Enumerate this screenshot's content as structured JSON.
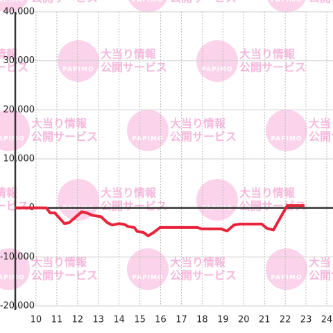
{
  "chart_data": {
    "type": "line",
    "watermark": {
      "logo": "PAPIMO",
      "lines": [
        "大当り情報",
        "公開サービス"
      ]
    },
    "xlim": [
      9,
      24.3
    ],
    "xticks": [
      10,
      11,
      12,
      13,
      14,
      15,
      16,
      17,
      18,
      19,
      20,
      21,
      22,
      23,
      24
    ],
    "ylim": [
      -20000,
      40000
    ],
    "yticks": [
      {
        "value": -20000,
        "label": "-20,000"
      },
      {
        "value": -10000,
        "label": "-10,000"
      },
      0,
      {
        "value": 10000,
        "label": "10,000"
      },
      {
        "value": 20000,
        "label": "20,000"
      },
      {
        "value": 30000,
        "label": "30,000"
      },
      {
        "value": 40000,
        "label": "40,000"
      }
    ],
    "grid": true,
    "series": [
      {
        "color": "#e8233a",
        "x": [
          9.0,
          10.5,
          10.67,
          10.9,
          11.37,
          11.6,
          11.87,
          12.2,
          12.43,
          12.7,
          13.13,
          13.43,
          13.67,
          14.0,
          14.27,
          14.43,
          14.73,
          14.87,
          15.17,
          15.4,
          15.67,
          15.97,
          16.27,
          17.77,
          18.0,
          18.93,
          19.2,
          19.53,
          19.83,
          20.87,
          21.13,
          21.43,
          22.1,
          22.93
        ],
        "values": [
          0,
          0,
          -1000,
          -1000,
          -3200,
          -3000,
          -2000,
          -800,
          -1000,
          -1500,
          -1800,
          -3000,
          -3500,
          -3200,
          -3400,
          -3800,
          -4000,
          -4800,
          -5000,
          -5700,
          -5000,
          -4000,
          -4000,
          -4000,
          -4300,
          -4300,
          -4700,
          -3500,
          -3300,
          -3300,
          -4200,
          -4500,
          500,
          500
        ]
      }
    ]
  }
}
